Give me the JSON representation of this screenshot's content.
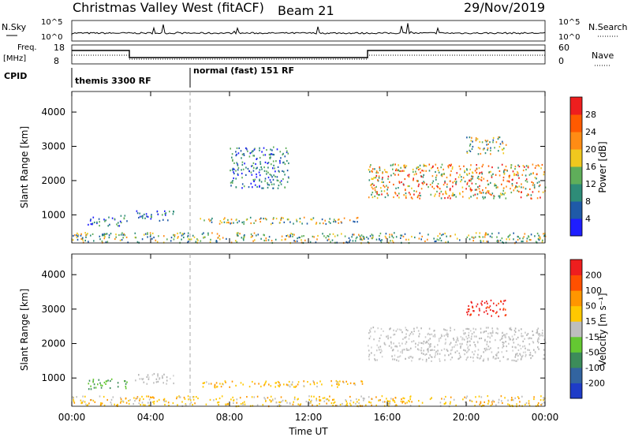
{
  "header": {
    "title": "Christmas Valley West (fitACF)",
    "beam": "Beam 21",
    "date": "29/Nov/2019"
  },
  "strip_panels": {
    "nsky_label": "N.Sky",
    "nsearch_label": "N.Search",
    "noise_ticks": [
      "10^5",
      "10^0"
    ],
    "freq_label": "Freq.",
    "freq_unit": "[MHz]",
    "freq_ticks": [
      "18",
      "8"
    ],
    "nave_ticks": [
      "60",
      "0"
    ],
    "nave_label": "Nave",
    "cpid_label": "CPID",
    "cpid_modes": [
      {
        "label": "themis 3300 RF",
        "start_hour": 0
      },
      {
        "label": "normal (fast) 151 RF",
        "start_hour": 6
      }
    ]
  },
  "chart_data": [
    {
      "type": "heatmap",
      "name": "power",
      "x_range_hours": [
        0,
        24
      ],
      "ylim_km": [
        180,
        4600
      ],
      "ylabel": "Slant Range [km]",
      "y_ticks": [
        "1000",
        "2000",
        "3000",
        "4000"
      ],
      "colorbar": {
        "label": "Power [dB]",
        "levels": [
          "4",
          "8",
          "12",
          "16",
          "20",
          "24",
          "28"
        ],
        "colors": [
          "#1e1eff",
          "#1f5aa8",
          "#2e8c78",
          "#5fae5a",
          "#f0c81e",
          "#ff8c14",
          "#ff5a00",
          "#ee1e1e"
        ]
      },
      "echo_regions": [
        {
          "t": [
            0.8,
            2.8
          ],
          "r": [
            700,
            1000
          ],
          "palette": "low"
        },
        {
          "t": [
            3.2,
            5.2
          ],
          "r": [
            850,
            1150
          ],
          "palette": "low"
        },
        {
          "t": [
            8.0,
            11.0
          ],
          "r": [
            1800,
            3000
          ],
          "palette": "low"
        },
        {
          "t": [
            6.4,
            14.8
          ],
          "r": [
            750,
            950
          ],
          "palette": "mid"
        },
        {
          "t": [
            15.0,
            24.0
          ],
          "r": [
            1500,
            2500
          ],
          "palette": "high"
        },
        {
          "t": [
            20.0,
            22.0
          ],
          "r": [
            2800,
            3300
          ],
          "palette": "mid"
        },
        {
          "t": [
            0.0,
            24.0
          ],
          "r": [
            200,
            500
          ],
          "palette": "mid"
        }
      ]
    },
    {
      "type": "heatmap",
      "name": "velocity",
      "x_range_hours": [
        0,
        24
      ],
      "ylim_km": [
        180,
        4600
      ],
      "ylabel": "Slant Range [km]",
      "y_ticks": [
        "1000",
        "2000",
        "3000",
        "4000"
      ],
      "xlabel": "Time UT",
      "x_ticks": [
        "00:00",
        "04:00",
        "08:00",
        "12:00",
        "16:00",
        "20:00",
        "00:00"
      ],
      "colorbar": {
        "label": "Velocity [m s⁻¹]",
        "levels": [
          "200",
          "100",
          "50",
          "15",
          "-15",
          "-50",
          "-100",
          "-200"
        ],
        "colors": [
          "#1e3cc8",
          "#3264a0",
          "#3c8c5a",
          "#64c832",
          "#bebebe",
          "#ffc800",
          "#ff9600",
          "#ff5000",
          "#ee1e1e"
        ]
      },
      "echo_regions": [
        {
          "t": [
            0.8,
            2.8
          ],
          "r": [
            700,
            1000
          ],
          "palette": "green"
        },
        {
          "t": [
            3.2,
            5.2
          ],
          "r": [
            850,
            1150
          ],
          "palette": "grey"
        },
        {
          "t": [
            6.4,
            14.8
          ],
          "r": [
            750,
            950
          ],
          "palette": "orange"
        },
        {
          "t": [
            15.0,
            24.0
          ],
          "r": [
            1500,
            2500
          ],
          "palette": "grey"
        },
        {
          "t": [
            20.0,
            22.0
          ],
          "r": [
            2800,
            3300
          ],
          "palette": "red"
        },
        {
          "t": [
            0.0,
            24.0
          ],
          "r": [
            200,
            500
          ],
          "palette": "orange"
        }
      ]
    }
  ]
}
